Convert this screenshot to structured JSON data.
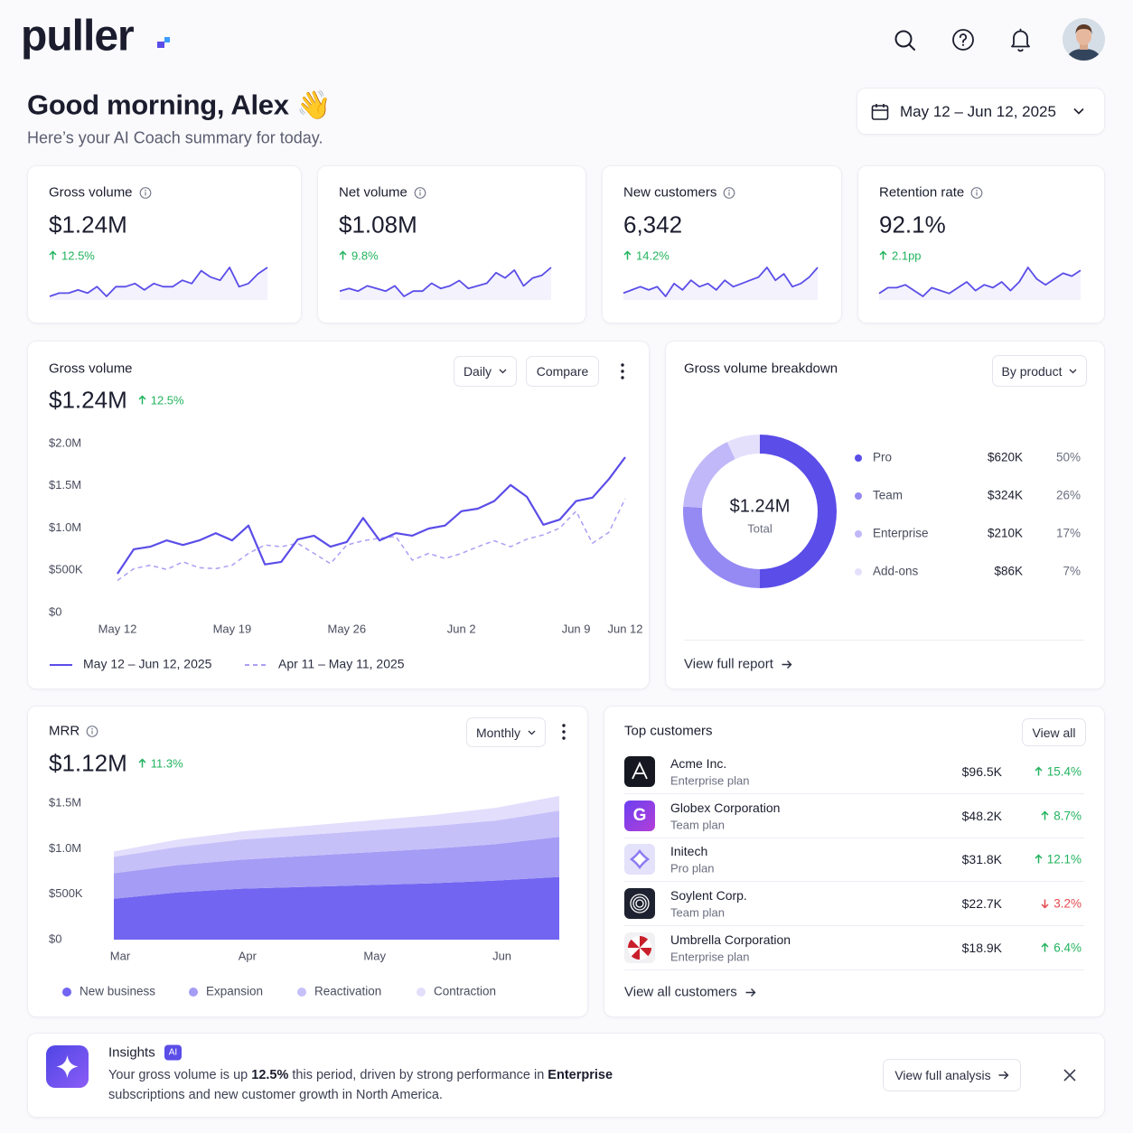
{
  "header": {
    "logo": "puller",
    "greeting": "Good morning, Alex 👋",
    "subtitle": "Here’s your AI Coach summary for today.",
    "date_range": "May 12 – Jun 12, 2025"
  },
  "kpis": [
    {
      "label": "Gross volume",
      "value": "$1.24M",
      "change": "12.5%"
    },
    {
      "label": "Net volume",
      "value": "$1.08M",
      "change": "9.8%"
    },
    {
      "label": "New customers",
      "value": "6,342",
      "change": "14.2%"
    },
    {
      "label": "Retention rate",
      "value": "92.1%",
      "change": "2.1pp"
    }
  ],
  "chart_data": [
    {
      "type": "sparkline",
      "color": "#5b4de8",
      "values": [
        3,
        4,
        4,
        5,
        4,
        6,
        3,
        6,
        6,
        7,
        5,
        7,
        6,
        6,
        8,
        7,
        11,
        9,
        8,
        12,
        6,
        7,
        10,
        12
      ]
    },
    {
      "type": "sparkline",
      "color": "#5b4de8",
      "values": [
        4,
        5,
        4,
        6,
        5,
        4,
        6,
        2,
        4,
        4,
        7,
        5,
        6,
        8,
        5,
        6,
        7,
        11,
        9,
        12,
        6,
        9,
        10,
        13
      ]
    },
    {
      "type": "sparkline",
      "color": "#5b4de8",
      "values": [
        4,
        5,
        6,
        5,
        6,
        3,
        7,
        5,
        8,
        6,
        7,
        5,
        8,
        6,
        7,
        8,
        9,
        12,
        8,
        10,
        6,
        7,
        9,
        12
      ]
    },
    {
      "type": "sparkline",
      "color": "#5b4de8",
      "values": [
        4,
        6,
        6,
        7,
        5,
        3,
        6,
        5,
        4,
        6,
        8,
        5,
        7,
        6,
        8,
        5,
        8,
        13,
        9,
        7,
        9,
        11,
        10,
        12
      ]
    },
    {
      "type": "line",
      "title": "Gross volume",
      "value": "$1.24M",
      "change": "12.5%",
      "controls": [
        "Daily",
        "Compare"
      ],
      "categories": [
        "May 12",
        null,
        null,
        null,
        null,
        null,
        null,
        "May 19",
        null,
        null,
        null,
        null,
        null,
        null,
        "May 26",
        null,
        null,
        null,
        null,
        null,
        null,
        "Jun 2",
        null,
        null,
        null,
        null,
        null,
        null,
        "Jun 9",
        null,
        null,
        "Jun 12"
      ],
      "series": [
        {
          "name": "May 12 – Jun 12, 2025",
          "color": "#5b4de8",
          "values": [
            460000,
            750000,
            780000,
            855000,
            800000,
            855000,
            940000,
            855000,
            1030000,
            570000,
            600000,
            865000,
            910000,
            780000,
            835000,
            1120000,
            855000,
            940000,
            910000,
            995000,
            1030000,
            1200000,
            1230000,
            1320000,
            1510000,
            1370000,
            1040000,
            1100000,
            1320000,
            1360000,
            1580000,
            1840000
          ]
        },
        {
          "name": "Apr 11 – May 11, 2025",
          "color": "#a99ff5",
          "dashed": true,
          "values": [
            380000,
            520000,
            560000,
            510000,
            600000,
            530000,
            520000,
            560000,
            700000,
            800000,
            780000,
            820000,
            700000,
            580000,
            800000,
            850000,
            880000,
            900000,
            620000,
            700000,
            640000,
            700000,
            780000,
            850000,
            780000,
            870000,
            920000,
            1000000,
            1200000,
            820000,
            950000,
            1350000
          ]
        }
      ],
      "ylim": [
        0,
        2000000
      ],
      "yticks": [
        {
          "value": 0,
          "label": "$0"
        },
        {
          "value": 500000,
          "label": "$500K"
        },
        {
          "value": 1000000,
          "label": "$1.0M"
        },
        {
          "value": 1500000,
          "label": "$1.5M"
        },
        {
          "value": 2000000,
          "label": "$2.0M"
        }
      ]
    },
    {
      "type": "donut",
      "title": "Gross volume breakdown",
      "control": "By product",
      "center_value": "$1.24M",
      "center_label": "Total",
      "categories": [
        "Pro",
        "Team",
        "Enterprise",
        "Add-ons"
      ],
      "values": [
        50,
        26,
        17,
        7
      ],
      "value_labels": [
        "50%",
        "26%",
        "17%",
        "7%"
      ],
      "amounts": [
        "$620K",
        "$324K",
        "$210K",
        "$86K"
      ],
      "colors": [
        "#5b4de8",
        "#958af3",
        "#c0b8f8",
        "#e4e0fc"
      ],
      "link": "View full report"
    },
    {
      "type": "area",
      "title": "MRR",
      "value": "$1.12M",
      "change": "11.3%",
      "control": "Monthly",
      "categories": [
        "Mar",
        null,
        "Apr",
        null,
        "May",
        null,
        "Jun",
        null
      ],
      "series": [
        {
          "name": "New business",
          "color": "#7265f1",
          "values": [
            450000,
            520000,
            560000,
            580000,
            600000,
            620000,
            650000,
            690000
          ]
        },
        {
          "name": "Expansion",
          "color": "#a59cf5",
          "values": [
            280000,
            300000,
            320000,
            340000,
            360000,
            380000,
            400000,
            440000
          ]
        },
        {
          "name": "Reactivation",
          "color": "#c6c0f9",
          "values": [
            180000,
            200000,
            220000,
            230000,
            240000,
            250000,
            260000,
            290000
          ]
        },
        {
          "name": "Contraction",
          "color": "#e2defc",
          "values": [
            60000,
            80000,
            90000,
            100000,
            110000,
            120000,
            140000,
            160000
          ]
        }
      ],
      "ylim": [
        0,
        1600000
      ],
      "yticks": [
        {
          "value": 0,
          "label": "$0"
        },
        {
          "value": 500000,
          "label": "$500K"
        },
        {
          "value": 1000000,
          "label": "$1.0M"
        },
        {
          "value": 1500000,
          "label": "$1.5M"
        }
      ]
    }
  ],
  "customers": {
    "title": "Top customers",
    "button": "View all",
    "link": "View all customers",
    "rows": [
      {
        "name": "Acme Inc.",
        "plan": "Enterprise plan",
        "amount": "$96.5K",
        "change": "15.4%",
        "trend": "up"
      },
      {
        "name": "Globex Corporation",
        "plan": "Team plan",
        "amount": "$48.2K",
        "change": "8.7%",
        "trend": "up",
        "logo": "G"
      },
      {
        "name": "Initech",
        "plan": "Pro plan",
        "amount": "$31.8K",
        "change": "12.1%",
        "trend": "up"
      },
      {
        "name": "Soylent Corp.",
        "plan": "Team plan",
        "amount": "$22.7K",
        "change": "3.2%",
        "trend": "down"
      },
      {
        "name": "Umbrella Corporation",
        "plan": "Enterprise plan",
        "amount": "$18.9K",
        "change": "6.4%",
        "trend": "up"
      }
    ]
  },
  "insights": {
    "title": "Insights",
    "badge": "AI",
    "button": "View full analysis",
    "text": [
      {
        "text": "Your gross volume is up "
      },
      {
        "text": "12.5%",
        "bold": true
      },
      {
        "text": " this period, driven by strong performance in "
      },
      {
        "text": "Enterprise",
        "bold": true
      },
      {
        "text": " subscriptions and new customer growth in North America."
      }
    ]
  }
}
